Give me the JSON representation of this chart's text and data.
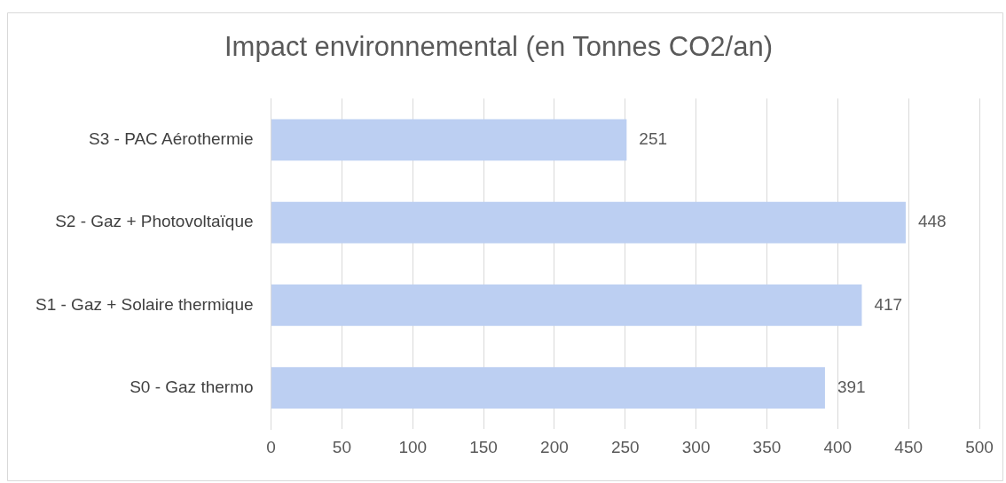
{
  "chart_data": {
    "type": "bar",
    "orientation": "horizontal",
    "title": "Impact environnemental (en Tonnes CO2/an)",
    "categories": [
      "S3 - PAC Aérothermie",
      "S2 - Gaz + Photovoltaïque",
      "S1 - Gaz + Solaire thermique",
      "S0 - Gaz thermo"
    ],
    "values": [
      251,
      448,
      417,
      391
    ],
    "color": "#bccff2",
    "xlim": [
      0,
      500
    ],
    "xticks": [
      0,
      50,
      100,
      150,
      200,
      250,
      300,
      350,
      400,
      450,
      500
    ],
    "grid": "x",
    "data_labels": true,
    "legend": false
  }
}
